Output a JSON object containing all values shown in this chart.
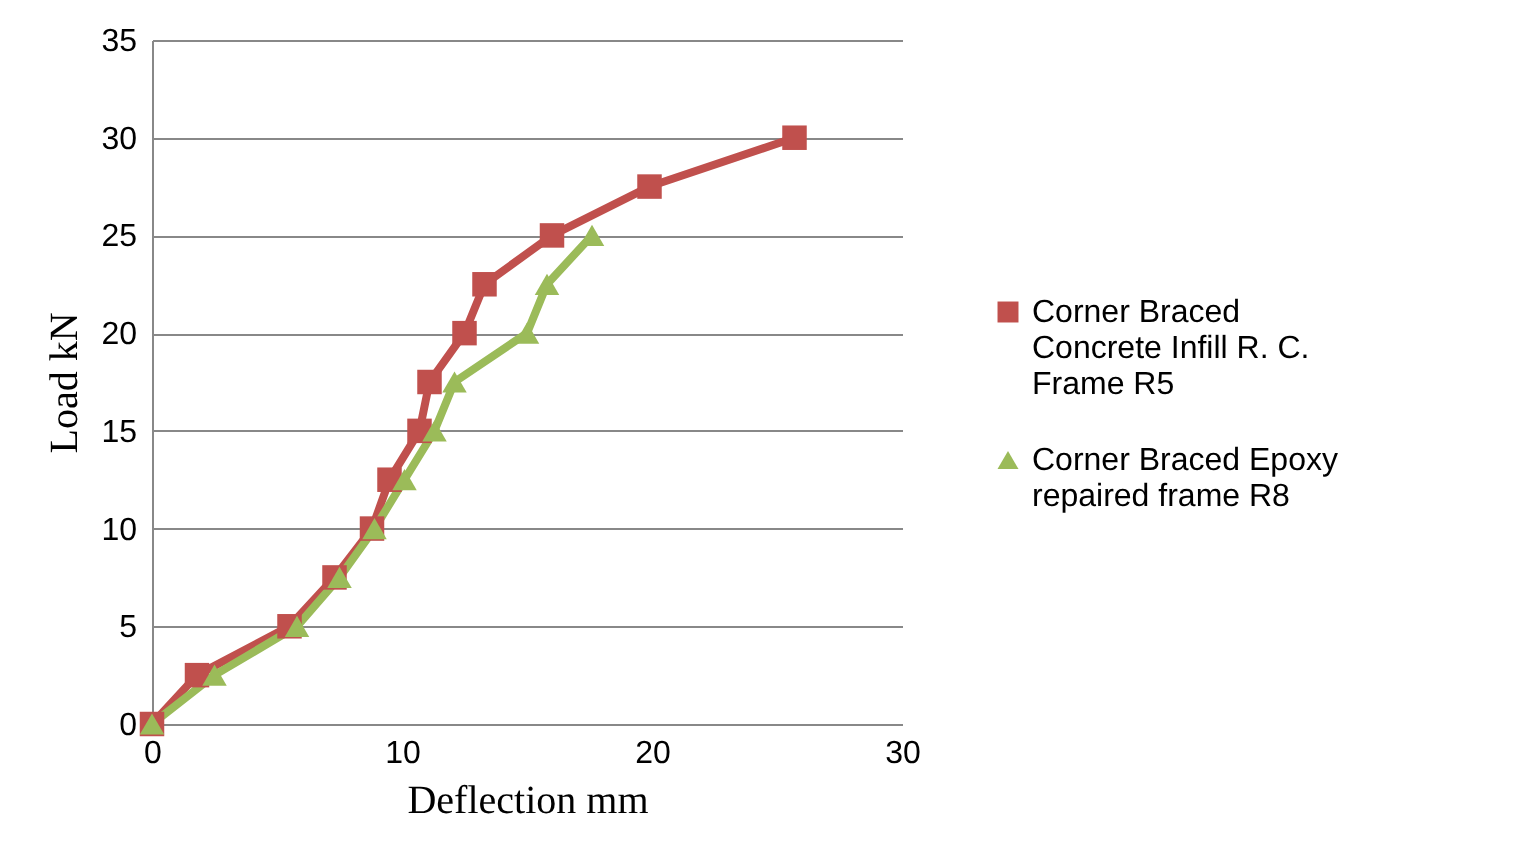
{
  "chart_data": {
    "type": "line",
    "xlabel": "Deflection  mm",
    "ylabel": "Load kN",
    "xlim": [
      0,
      30
    ],
    "xticks": [
      0,
      10,
      20,
      30
    ],
    "ylim": [
      0,
      35
    ],
    "yticks": [
      0,
      5,
      10,
      15,
      20,
      25,
      30,
      35
    ],
    "grid": "y",
    "legend": "right",
    "series": [
      {
        "name": "Corner Braced Concrete Infill R. C. Frame R5",
        "color": "#c0504d",
        "marker": "square",
        "x": [
          0,
          1.8,
          5.5,
          7.3,
          8.8,
          9.5,
          10.7,
          11.1,
          12.5,
          13.3,
          16,
          19.9,
          25.7
        ],
        "values": [
          0,
          2.5,
          5,
          7.5,
          10,
          12.5,
          15,
          17.5,
          20,
          22.5,
          25,
          27.5,
          30
        ]
      },
      {
        "name": "Corner Braced  Epoxy repaired frame R8",
        "color": "#9bbb59",
        "marker": "triangle",
        "x": [
          0,
          2.5,
          5.8,
          7.5,
          8.9,
          10.1,
          11.3,
          12.1,
          15,
          15.8,
          17.6
        ],
        "values": [
          0,
          2.5,
          5,
          7.5,
          10,
          12.5,
          15,
          17.5,
          20,
          22.5,
          25
        ]
      }
    ]
  }
}
